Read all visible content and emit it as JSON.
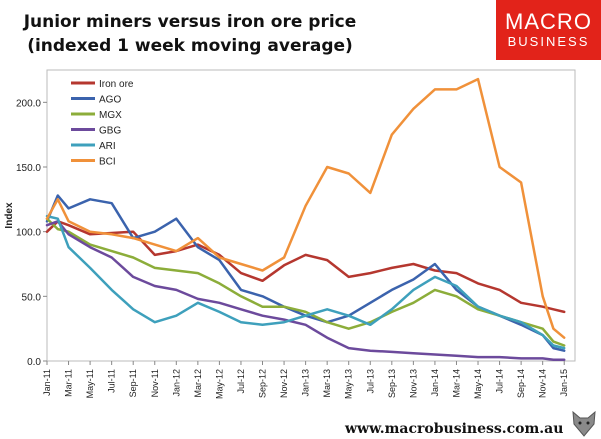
{
  "title_line1": "Junior miners versus iron ore price",
  "title_line2": "(indexed 1 week moving average)",
  "logo": {
    "line1": "MACRO",
    "line2": "BUSINESS",
    "color": "#e2231a"
  },
  "footer_url": "www.macrobusiness.com.au",
  "chart_data": {
    "type": "line",
    "ylabel": "Index",
    "ylim": [
      0,
      225
    ],
    "yticks": [
      0,
      50,
      100,
      150,
      200
    ],
    "ytick_labels": [
      "0.0",
      "50.0",
      "100.0",
      "150.0",
      "200.0"
    ],
    "xlim": [
      0,
      49
    ],
    "xtick_labels": [
      "Jan-11",
      "Mar-11",
      "May-11",
      "Jul-11",
      "Sep-11",
      "Nov-11",
      "Jan-12",
      "Mar-12",
      "May-12",
      "Jul-12",
      "Sep-12",
      "Nov-12",
      "Jan-13",
      "Mar-13",
      "May-13",
      "Jul-13",
      "Sep-13",
      "Nov-13",
      "Jan-14",
      "Mar-14",
      "May-14",
      "Jul-14",
      "Sep-14",
      "Nov-14",
      "Jan-15"
    ],
    "legend_position": "top-left",
    "series": [
      {
        "name": "Iron ore",
        "color": "#b5372f",
        "x": [
          0,
          1,
          2,
          4,
          6,
          8,
          10,
          12,
          14,
          16,
          18,
          20,
          22,
          24,
          26,
          28,
          30,
          32,
          34,
          36,
          38,
          40,
          42,
          44,
          46,
          47,
          48
        ],
        "y": [
          100,
          108,
          105,
          98,
          99,
          100,
          82,
          85,
          90,
          82,
          68,
          62,
          74,
          82,
          78,
          65,
          68,
          72,
          75,
          70,
          68,
          60,
          55,
          45,
          42,
          40,
          38
        ]
      },
      {
        "name": "AGO",
        "color": "#3b63ad",
        "x": [
          0,
          1,
          2,
          4,
          6,
          8,
          10,
          12,
          14,
          16,
          18,
          20,
          22,
          24,
          26,
          28,
          30,
          32,
          34,
          36,
          38,
          40,
          42,
          44,
          46,
          47,
          48
        ],
        "y": [
          108,
          128,
          118,
          125,
          122,
          95,
          100,
          110,
          88,
          78,
          55,
          50,
          42,
          35,
          30,
          35,
          45,
          55,
          63,
          75,
          55,
          42,
          35,
          28,
          20,
          10,
          8
        ]
      },
      {
        "name": "MGX",
        "color": "#8cad3a",
        "x": [
          0,
          1,
          2,
          4,
          6,
          8,
          10,
          12,
          14,
          16,
          18,
          20,
          22,
          24,
          26,
          28,
          30,
          32,
          34,
          36,
          38,
          40,
          42,
          44,
          46,
          47,
          48
        ],
        "y": [
          110,
          102,
          100,
          90,
          85,
          80,
          72,
          70,
          68,
          60,
          50,
          42,
          42,
          38,
          30,
          25,
          30,
          38,
          45,
          55,
          50,
          40,
          35,
          30,
          25,
          15,
          12
        ]
      },
      {
        "name": "GBG",
        "color": "#6c4a9c",
        "x": [
          0,
          1,
          2,
          4,
          6,
          8,
          10,
          12,
          14,
          16,
          18,
          20,
          22,
          24,
          26,
          28,
          30,
          32,
          34,
          36,
          38,
          40,
          42,
          44,
          46,
          47,
          48
        ],
        "y": [
          105,
          108,
          98,
          88,
          80,
          65,
          58,
          55,
          48,
          45,
          40,
          35,
          32,
          28,
          18,
          10,
          8,
          7,
          6,
          5,
          4,
          3,
          3,
          2,
          2,
          1,
          1
        ]
      },
      {
        "name": "ARI",
        "color": "#3ea0bc",
        "x": [
          0,
          1,
          2,
          4,
          6,
          8,
          10,
          12,
          14,
          16,
          18,
          20,
          22,
          24,
          26,
          28,
          30,
          32,
          34,
          36,
          38,
          40,
          42,
          44,
          46,
          47,
          48
        ],
        "y": [
          112,
          110,
          88,
          72,
          55,
          40,
          30,
          35,
          45,
          38,
          30,
          28,
          30,
          35,
          40,
          35,
          28,
          40,
          55,
          65,
          58,
          42,
          35,
          30,
          20,
          12,
          10
        ]
      },
      {
        "name": "BCI",
        "color": "#f0913a",
        "x": [
          0,
          1,
          2,
          4,
          6,
          8,
          10,
          12,
          14,
          16,
          18,
          20,
          22,
          24,
          26,
          28,
          30,
          32,
          34,
          36,
          38,
          40,
          42,
          44,
          46,
          47,
          48
        ],
        "y": [
          110,
          125,
          108,
          100,
          98,
          95,
          90,
          85,
          95,
          80,
          75,
          70,
          80,
          120,
          150,
          145,
          130,
          175,
          195,
          210,
          210,
          218,
          150,
          138,
          50,
          25,
          18
        ]
      }
    ]
  }
}
